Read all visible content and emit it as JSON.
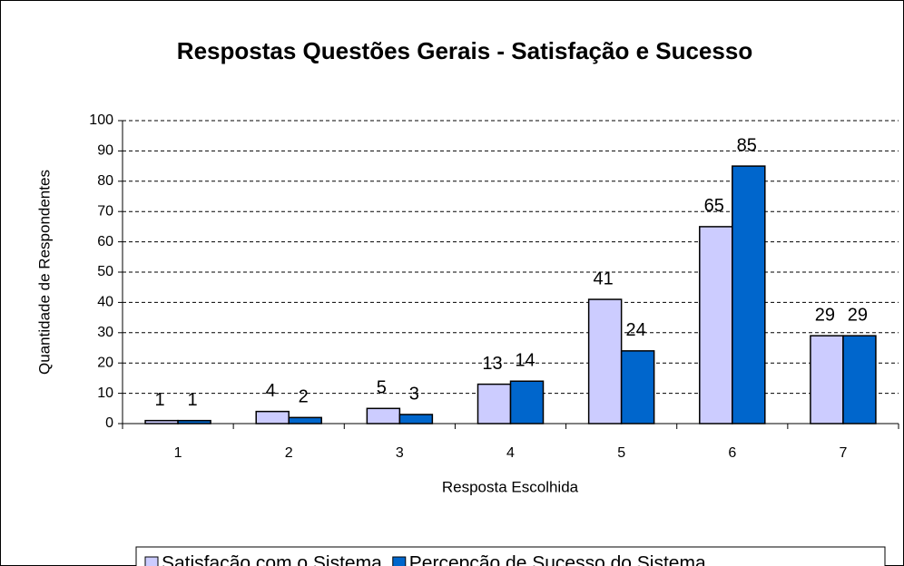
{
  "chart_data": {
    "type": "bar",
    "title": "Respostas Questões Gerais - Satisfação e Sucesso",
    "x_label": "Resposta Escolhida",
    "y_label": "Quantidade de Respondentes",
    "categories": [
      "1",
      "2",
      "3",
      "4",
      "5",
      "6",
      "7"
    ],
    "series": [
      {
        "name": "Satisfação com o Sistema",
        "color": "#ccccff",
        "values": [
          1,
          4,
          5,
          13,
          41,
          65,
          29
        ]
      },
      {
        "name": "Percepção de Sucesso do Sistema",
        "color": "#0066cc",
        "values": [
          1,
          2,
          3,
          14,
          24,
          85,
          29
        ]
      }
    ],
    "ylim": [
      0,
      100
    ],
    "yticks": [
      0,
      10,
      20,
      30,
      40,
      50,
      60,
      70,
      80,
      90,
      100
    ],
    "grid": true,
    "legend": "bottom"
  }
}
